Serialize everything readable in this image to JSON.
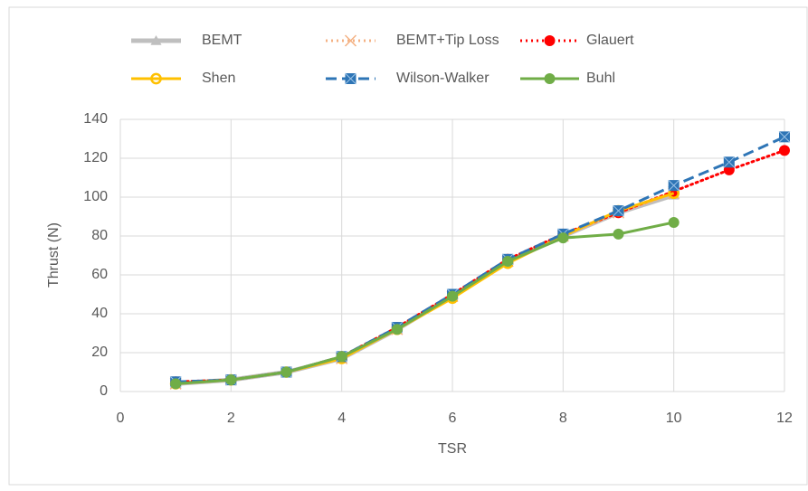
{
  "chart_data": {
    "type": "line",
    "xlabel": "TSR",
    "ylabel": "Thrust (N)",
    "x": [
      1,
      2,
      3,
      4,
      5,
      6,
      7,
      8,
      9,
      10,
      11,
      12
    ],
    "xlim": [
      0,
      12
    ],
    "xticks": [
      0,
      2,
      4,
      6,
      8,
      10,
      12
    ],
    "ylim": [
      0,
      140
    ],
    "yticks": [
      0,
      20,
      40,
      60,
      80,
      100,
      120,
      140
    ],
    "grid": true,
    "legend": "top",
    "series": [
      {
        "name": "BEMT",
        "color": "#bfbfbf",
        "dash": "solid",
        "marker": "triangle",
        "values": [
          4,
          6,
          10,
          17,
          32,
          49,
          67,
          80,
          92,
          101,
          null,
          null
        ]
      },
      {
        "name": "BEMT+Tip Loss",
        "color": "#f4b183",
        "dash": "dotted",
        "marker": "x",
        "values": [
          4,
          6,
          10,
          17,
          32,
          49,
          67,
          80,
          92,
          102,
          null,
          null
        ]
      },
      {
        "name": "Glauert",
        "color": "#ff0000",
        "dash": "dotted",
        "marker": "circle",
        "values": [
          5,
          6,
          10,
          18,
          33,
          50,
          68,
          81,
          92,
          103,
          114,
          124
        ]
      },
      {
        "name": "Shen",
        "color": "#ffc000",
        "dash": "solid",
        "marker": "open-circle",
        "values": [
          4,
          6,
          10,
          17,
          32,
          48,
          66,
          80,
          93,
          102,
          null,
          null
        ]
      },
      {
        "name": "Wilson-Walker",
        "color": "#2e75b6",
        "dash": "dashed",
        "marker": "square",
        "values": [
          5,
          6,
          10,
          18,
          33,
          50,
          68,
          81,
          93,
          106,
          118,
          131
        ]
      },
      {
        "name": "Buhl",
        "color": "#70ad47",
        "dash": "solid",
        "marker": "circle",
        "values": [
          4,
          6,
          10,
          18,
          32,
          49,
          67,
          79,
          81,
          87,
          null,
          null
        ]
      }
    ]
  }
}
